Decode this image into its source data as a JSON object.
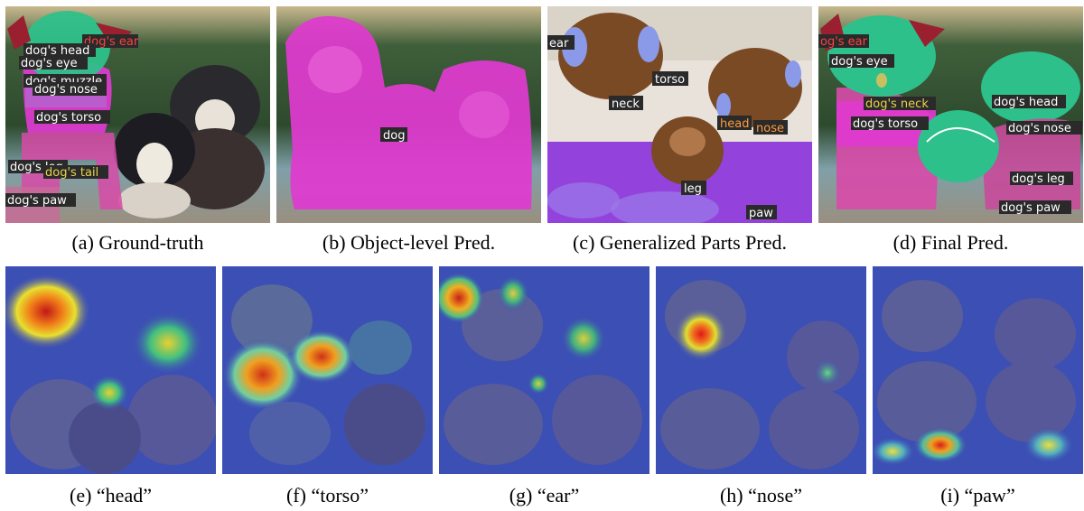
{
  "row1": [
    {
      "caption": "(a) Ground-truth",
      "labels": [
        "dog's ear",
        "dog's head",
        "dog's eye",
        "dog's muzzle",
        "dog's nose",
        "dog's torso",
        "dog's leg",
        "dog's tail",
        "dog's paw"
      ]
    },
    {
      "caption": "(b) Object-level Pred.",
      "labels": [
        "dog"
      ]
    },
    {
      "caption": "(c) Generalized Parts Pred.",
      "labels": [
        "ear",
        "torso",
        "neck",
        "head",
        "nose",
        "leg",
        "paw"
      ]
    },
    {
      "caption": "(d) Final Pred.",
      "labels": [
        "og's ear",
        "dog's eye",
        "dog's neck",
        "dog's head",
        "dog's torso",
        "dog's nose",
        "dog's leg",
        "dog's paw"
      ]
    }
  ],
  "row2": [
    {
      "caption": "(e) “head”"
    },
    {
      "caption": "(f) “torso”"
    },
    {
      "caption": "(g) “ear”"
    },
    {
      "caption": "(h) “nose”"
    },
    {
      "caption": "(i) “paw”"
    }
  ],
  "colors": {
    "bg_green": "#3f5f3a",
    "sky": "#c9c2a8",
    "water": "#7fa0a8",
    "magenta": "#e03ad0",
    "pink": "#d84aa8",
    "teal": "#2ec08a",
    "brown": "#7a4a25",
    "purple": "#8a3ad8",
    "blue_overlay": "#3c4fb4",
    "label_bg": "#2a2a2a",
    "label_white": "#ffffff",
    "label_red": "#ff4040",
    "label_yellow": "#e8d24a",
    "label_orange": "#ff9a3a"
  }
}
